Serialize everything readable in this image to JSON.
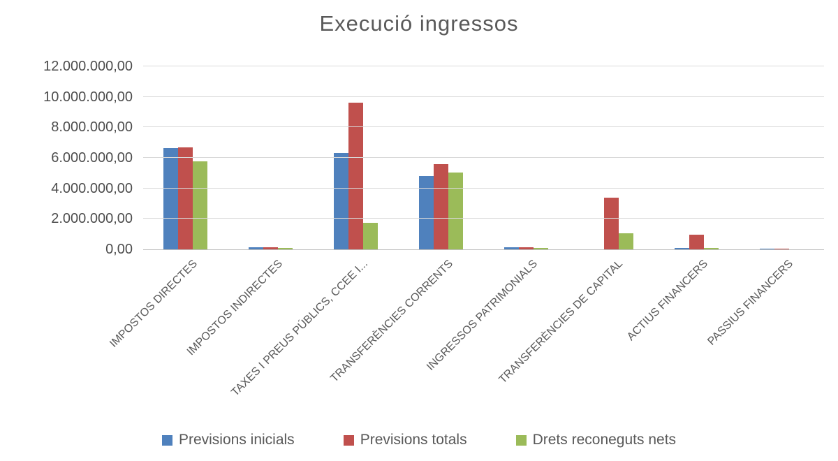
{
  "chart_data": {
    "type": "bar",
    "title": "Execució ingressos",
    "xlabel": "",
    "ylabel": "",
    "ylim": [
      0,
      12000000
    ],
    "grid": true,
    "legend_position": "bottom",
    "y_ticks": [
      "0,00",
      "2.000.000,00",
      "4.000.000,00",
      "6.000.000,00",
      "8.000.000,00",
      "10.000.000,00",
      "12.000.000,00"
    ],
    "categories": [
      "IMPOSTOS DIRECTES",
      "IMPOSTOS INDIRECTES",
      "TAXES I PREUS PÚBLICS, CCEE I...",
      "TRANSFERÈNCIES CORRENTS",
      "INGRESSOS PATRIMONIALS",
      "TRANSFERÈNCIES DE CAPITAL",
      "ACTIUS FINANCERS",
      "PASSIUS FINANCERS"
    ],
    "series": [
      {
        "name": "Previsions inicials",
        "color": "#4F81BD",
        "values": [
          6650000,
          160000,
          6300000,
          4800000,
          160000,
          0,
          90000,
          60000
        ]
      },
      {
        "name": "Previsions totals",
        "color": "#C0504D",
        "values": [
          6680000,
          160000,
          9600000,
          5570000,
          160000,
          3400000,
          950000,
          60000
        ]
      },
      {
        "name": "Drets reconeguts nets",
        "color": "#9BBB59",
        "values": [
          5780000,
          80000,
          1750000,
          5050000,
          80000,
          1050000,
          80000,
          0
        ]
      }
    ]
  }
}
